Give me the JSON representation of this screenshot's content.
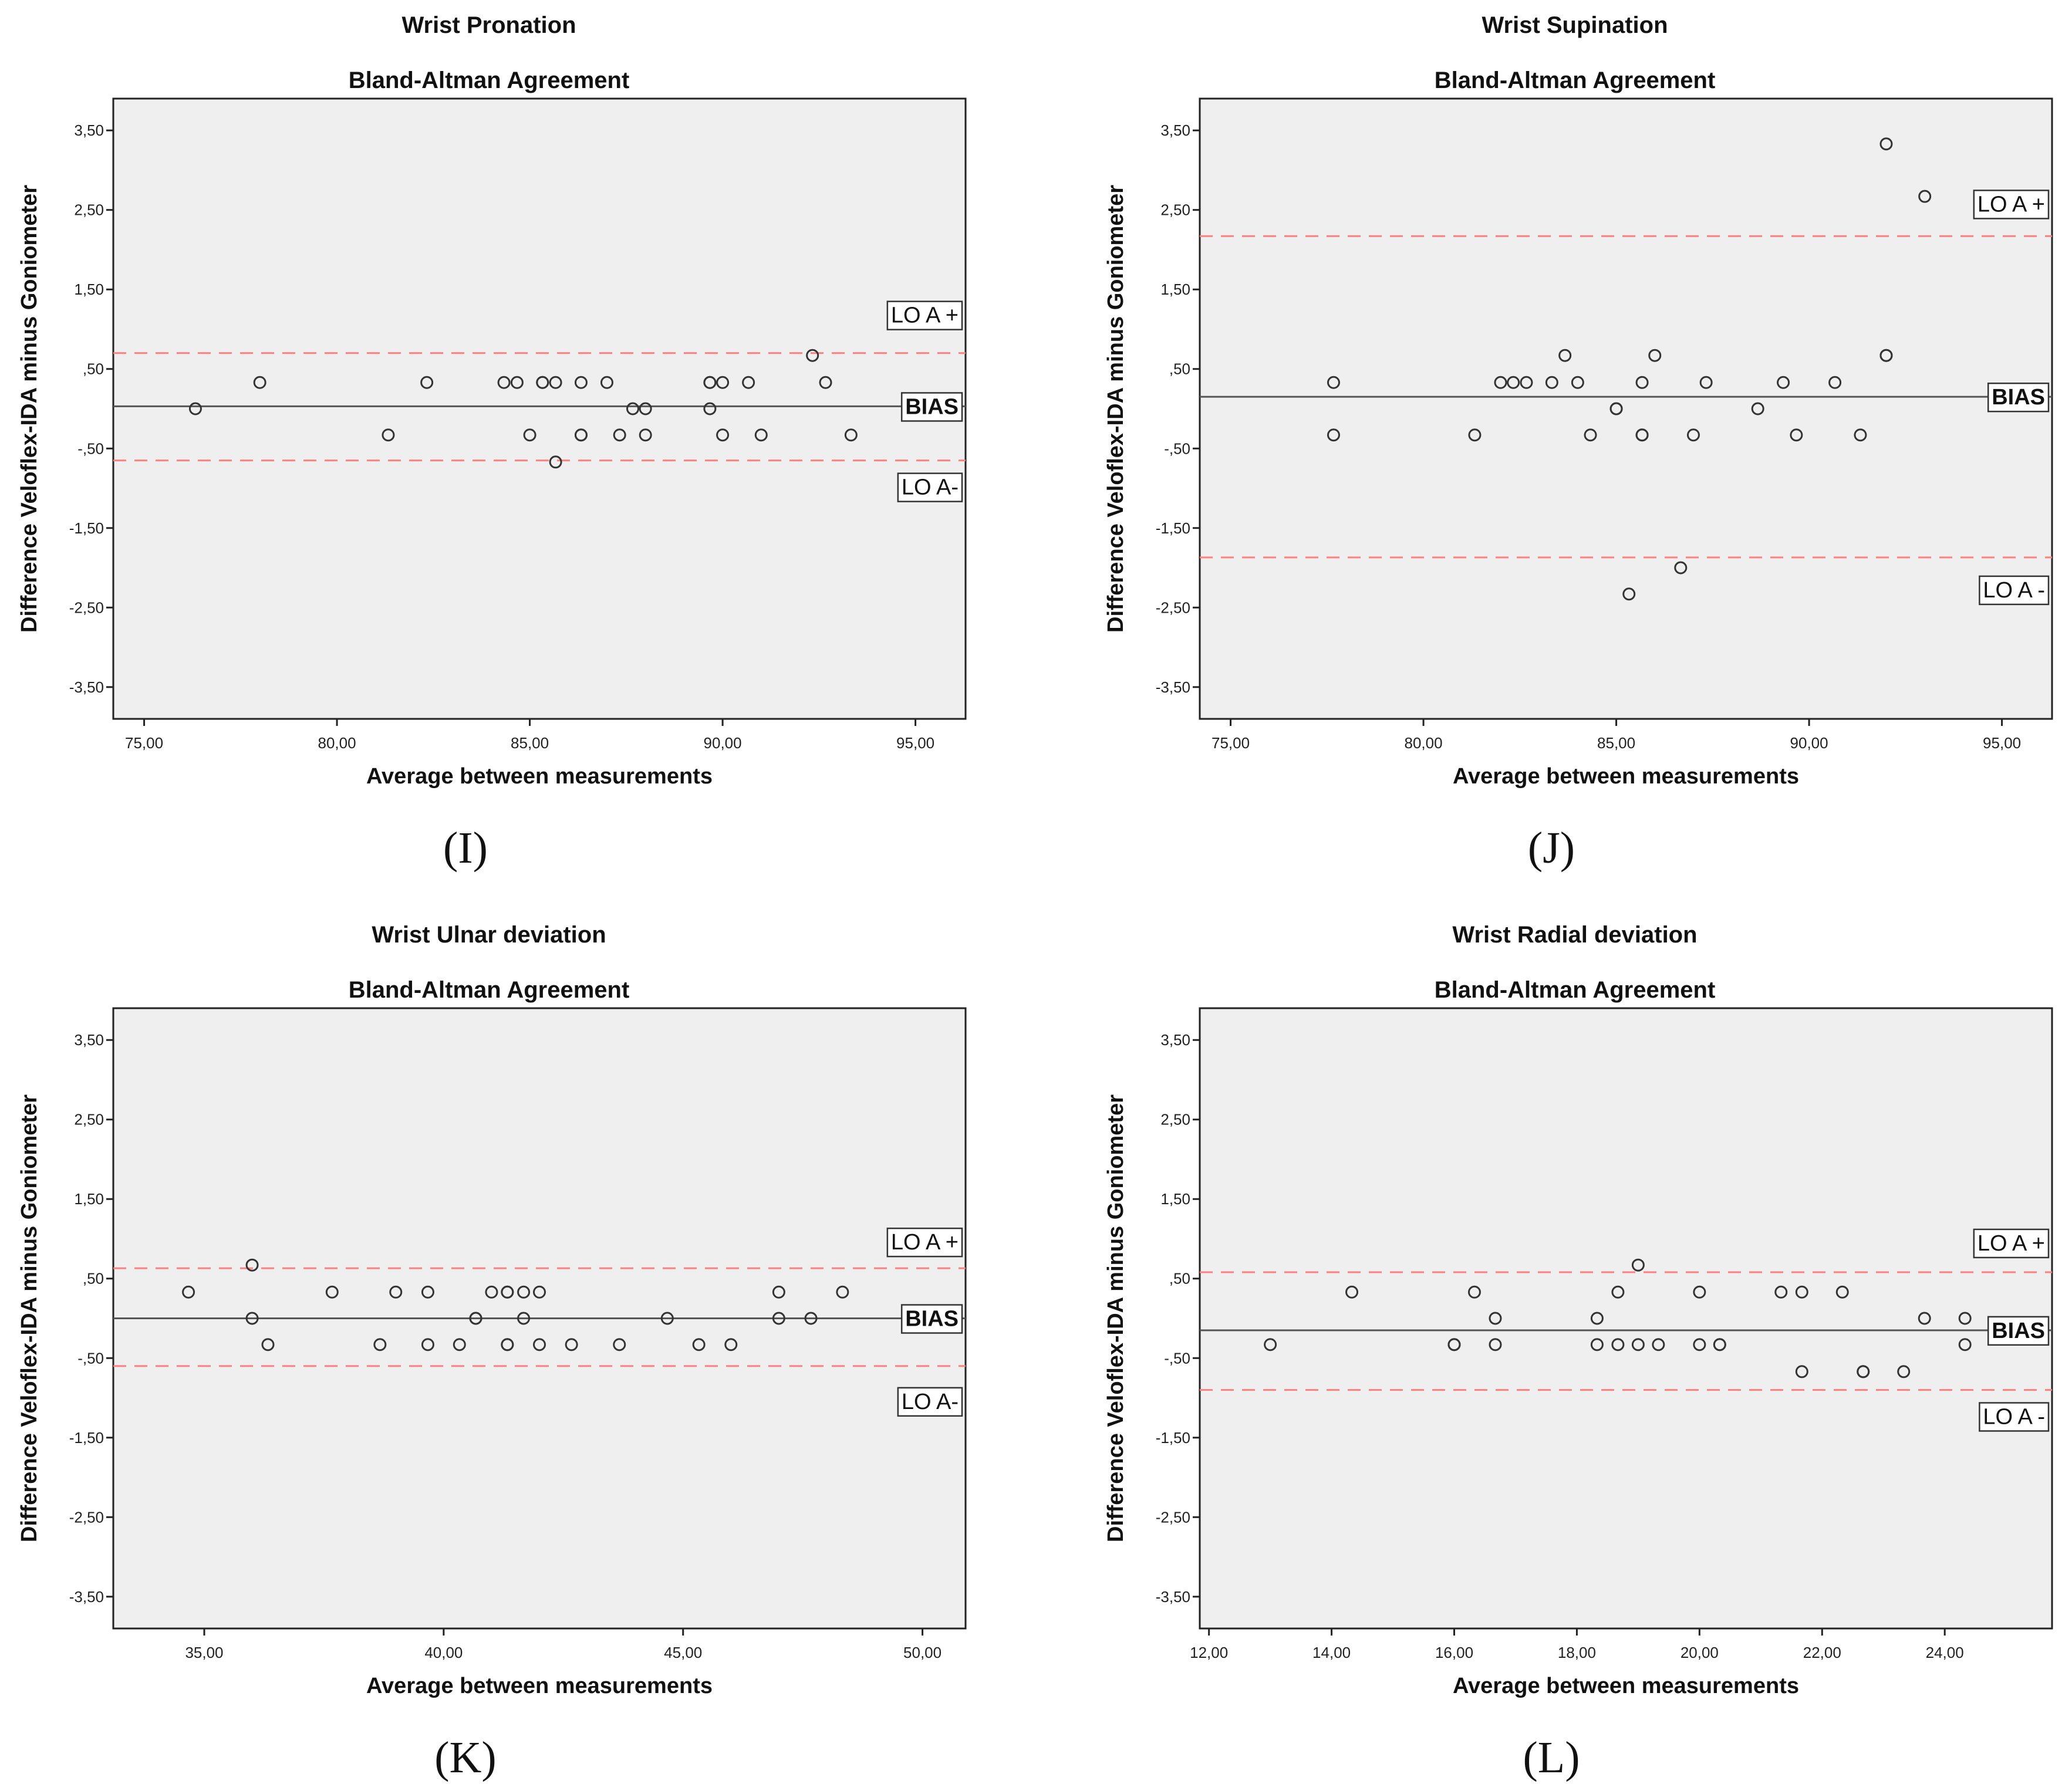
{
  "colors": {
    "plot_bg": "#efefef",
    "loa_line": "#ff8080",
    "bias_line": "#555555",
    "point": "#333333"
  },
  "chart_data": [
    {
      "type": "scatter",
      "panel_label": "(I)",
      "title": "Wrist Pronation",
      "subtitle": "Bland-Altman Agreement",
      "xlabel": "Average between measurements",
      "ylabel": "Difference Veloflex-IDA minus Goniometer",
      "xlim": [
        74.2,
        96.3
      ],
      "ylim": [
        -3.9,
        3.9
      ],
      "xticks": [
        75,
        80,
        85,
        90,
        95
      ],
      "xtick_labels": [
        "75,00",
        "80,00",
        "85,00",
        "90,00",
        "95,00"
      ],
      "yticks": [
        3.5,
        2.5,
        1.5,
        0.5,
        -0.5,
        -1.5,
        -2.5,
        -3.5
      ],
      "ytick_labels": [
        "3,50",
        "2,50",
        "1,50",
        ",50",
        "-,50",
        "-1,50",
        "-2,50",
        "-3,50"
      ],
      "bias": 0.03,
      "loa_upper": 0.7,
      "loa_lower": -0.65,
      "annotations": {
        "loa_upper": "LO A +",
        "bias": "BIAS",
        "loa_lower": "LO A-"
      },
      "points": [
        [
          76.33,
          0
        ],
        [
          78,
          0.33
        ],
        [
          81.33,
          -0.33
        ],
        [
          82.33,
          0.33
        ],
        [
          84.33,
          0.33
        ],
        [
          84.67,
          0.33
        ],
        [
          85,
          -0.33
        ],
        [
          85.33,
          0.33
        ],
        [
          85.33,
          0.33
        ],
        [
          85.67,
          -0.67
        ],
        [
          85.67,
          0.33
        ],
        [
          86.33,
          0.33
        ],
        [
          86.33,
          -0.33
        ],
        [
          86.33,
          -0.33
        ],
        [
          87,
          0.33
        ],
        [
          87.33,
          -0.33
        ],
        [
          87.67,
          0
        ],
        [
          88,
          0
        ],
        [
          88,
          -0.33
        ],
        [
          89.67,
          0.33
        ],
        [
          89.67,
          0.33
        ],
        [
          89.67,
          0
        ],
        [
          90,
          0.33
        ],
        [
          90,
          -0.33
        ],
        [
          90.67,
          0.33
        ],
        [
          91,
          -0.33
        ],
        [
          92.33,
          0.67
        ],
        [
          92.67,
          0.33
        ],
        [
          93.33,
          -0.33
        ]
      ]
    },
    {
      "type": "scatter",
      "panel_label": "(J)",
      "title": "Wrist Supination",
      "subtitle": "Bland-Altman Agreement",
      "xlabel": "Average between measurements",
      "ylabel": "Difference Veloflex-IDA minus Goniometer",
      "xlim": [
        74.2,
        96.3
      ],
      "ylim": [
        -3.9,
        3.9
      ],
      "xticks": [
        75,
        80,
        85,
        90,
        95
      ],
      "xtick_labels": [
        "75,00",
        "80,00",
        "85,00",
        "90,00",
        "95,00"
      ],
      "yticks": [
        3.5,
        2.5,
        1.5,
        0.5,
        -0.5,
        -1.5,
        -2.5,
        -3.5
      ],
      "ytick_labels": [
        "3,50",
        "2,50",
        "1,50",
        ",50",
        "-,50",
        "-1,50",
        "-2,50",
        "-3,50"
      ],
      "bias": 0.15,
      "loa_upper": 2.17,
      "loa_lower": -1.87,
      "annotations": {
        "loa_upper": "LO A +",
        "bias": "BIAS",
        "loa_lower": "LO A -"
      },
      "points": [
        [
          77.67,
          0.33
        ],
        [
          77.67,
          -0.33
        ],
        [
          81.33,
          -0.33
        ],
        [
          82,
          0.33
        ],
        [
          82.33,
          0.33
        ],
        [
          82.67,
          0.33
        ],
        [
          83.33,
          0.33
        ],
        [
          83.67,
          0.67
        ],
        [
          84,
          0.33
        ],
        [
          84.33,
          -0.33
        ],
        [
          85,
          0
        ],
        [
          85,
          0
        ],
        [
          85.33,
          -2.33
        ],
        [
          85.67,
          0.33
        ],
        [
          85.67,
          -0.33
        ],
        [
          85.67,
          -0.33
        ],
        [
          86,
          0.67
        ],
        [
          86.67,
          -2
        ],
        [
          87,
          -0.33
        ],
        [
          87.33,
          0.33
        ],
        [
          88.67,
          0
        ],
        [
          89.33,
          0.33
        ],
        [
          89.67,
          -0.33
        ],
        [
          90.67,
          0.33
        ],
        [
          91.33,
          -0.33
        ],
        [
          92,
          0.67
        ],
        [
          92,
          0.67
        ],
        [
          92,
          3.33
        ],
        [
          93,
          2.67
        ]
      ]
    },
    {
      "type": "scatter",
      "panel_label": "(K)",
      "title": "Wrist Ulnar deviation",
      "subtitle": "Bland-Altman Agreement",
      "xlabel": "Average between measurements",
      "ylabel": "Difference Veloflex-IDA minus Goniometer",
      "xlim": [
        33.1,
        50.9
      ],
      "ylim": [
        -3.9,
        3.9
      ],
      "xticks": [
        35,
        40,
        45,
        50
      ],
      "xtick_labels": [
        "35,00",
        "40,00",
        "45,00",
        "50,00"
      ],
      "yticks": [
        3.5,
        2.5,
        1.5,
        0.5,
        -0.5,
        -1.5,
        -2.5,
        -3.5
      ],
      "ytick_labels": [
        "3,50",
        "2,50",
        "1,50",
        ",50",
        "-,50",
        "-1,50",
        "-2,50",
        "-3,50"
      ],
      "bias": 0.0,
      "loa_upper": 0.63,
      "loa_lower": -0.6,
      "annotations": {
        "loa_upper": "LO A +",
        "bias": "BIAS",
        "loa_lower": "LO A-"
      },
      "points": [
        [
          34.67,
          0.33
        ],
        [
          36,
          0.67
        ],
        [
          36,
          0
        ],
        [
          36.33,
          -0.33
        ],
        [
          37.67,
          0.33
        ],
        [
          38.67,
          -0.33
        ],
        [
          39,
          0.33
        ],
        [
          39.67,
          0.33
        ],
        [
          39.67,
          -0.33
        ],
        [
          40.33,
          -0.33
        ],
        [
          40.67,
          0
        ],
        [
          40.67,
          0
        ],
        [
          41,
          0.33
        ],
        [
          41.33,
          0.33
        ],
        [
          41.33,
          0.33
        ],
        [
          41.33,
          -0.33
        ],
        [
          41.33,
          -0.33
        ],
        [
          41.67,
          0.33
        ],
        [
          41.67,
          0
        ],
        [
          42,
          0.33
        ],
        [
          42,
          -0.33
        ],
        [
          42.67,
          -0.33
        ],
        [
          43.67,
          -0.33
        ],
        [
          44.67,
          0
        ],
        [
          45.33,
          -0.33
        ],
        [
          46,
          -0.33
        ],
        [
          47,
          0.33
        ],
        [
          47,
          0
        ],
        [
          47.67,
          0
        ],
        [
          48.33,
          0.33
        ]
      ]
    },
    {
      "type": "scatter",
      "panel_label": "(L)",
      "title": "Wrist Radial deviation",
      "subtitle": "Bland-Altman Agreement",
      "xlabel": "Average between measurements",
      "ylabel": "Difference Veloflex-IDA minus Goniometer",
      "xlim": [
        11.85,
        25.75
      ],
      "ylim": [
        -3.9,
        3.9
      ],
      "xticks": [
        12,
        14,
        16,
        18,
        20,
        22,
        24
      ],
      "xtick_labels": [
        "12,00",
        "14,00",
        "16,00",
        "18,00",
        "20,00",
        "22,00",
        "24,00"
      ],
      "yticks": [
        3.5,
        2.5,
        1.5,
        0.5,
        -0.5,
        -1.5,
        -2.5,
        -3.5
      ],
      "ytick_labels": [
        "3,50",
        "2,50",
        "1,50",
        ",50",
        "-,50",
        "-1,50",
        "-2,50",
        "-3,50"
      ],
      "bias": -0.15,
      "loa_upper": 0.58,
      "loa_lower": -0.9,
      "annotations": {
        "loa_upper": "LO A +",
        "bias": "BIAS",
        "loa_lower": "LO A -"
      },
      "points": [
        [
          13,
          -0.33
        ],
        [
          14.33,
          0.33
        ],
        [
          16,
          -0.33
        ],
        [
          16,
          -0.33
        ],
        [
          16.33,
          0.33
        ],
        [
          16.67,
          0
        ],
        [
          16.67,
          -0.33
        ],
        [
          18.33,
          0
        ],
        [
          18.33,
          -0.33
        ],
        [
          18.67,
          0.33
        ],
        [
          18.67,
          -0.33
        ],
        [
          19,
          0.67
        ],
        [
          19,
          -0.33
        ],
        [
          19.33,
          -0.33
        ],
        [
          20,
          0.33
        ],
        [
          20,
          -0.33
        ],
        [
          20.33,
          -0.33
        ],
        [
          20.33,
          -0.33
        ],
        [
          21.33,
          0.33
        ],
        [
          21.67,
          0.33
        ],
        [
          21.67,
          -0.67
        ],
        [
          22.33,
          0.33
        ],
        [
          22.67,
          -0.67
        ],
        [
          22.67,
          -0.67
        ],
        [
          23.33,
          -0.67
        ],
        [
          23.67,
          0
        ],
        [
          24.33,
          0
        ],
        [
          24.33,
          -0.33
        ]
      ]
    }
  ]
}
